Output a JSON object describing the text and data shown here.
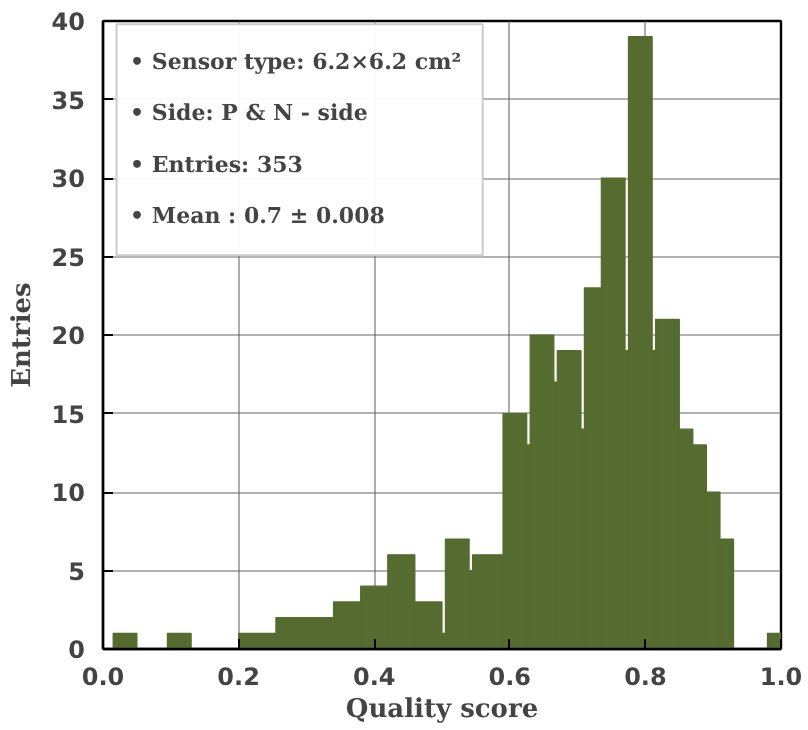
{
  "chart_data": {
    "type": "histogram",
    "xlabel": "Quality score",
    "ylabel": "Entries",
    "bins": [
      0.015,
      0.05,
      0.095,
      0.13,
      0.2,
      0.255,
      0.34,
      0.38,
      0.42,
      0.46,
      0.5,
      0.505,
      0.54,
      0.545,
      0.59,
      0.625,
      0.63,
      0.665,
      0.67,
      0.705,
      0.71,
      0.735,
      0.77,
      0.775,
      0.81,
      0.815,
      0.85,
      0.87,
      0.89,
      0.91,
      0.93,
      0.98,
      1.0
    ],
    "values": [
      1,
      0,
      1,
      0,
      1,
      2,
      3,
      4,
      6,
      3,
      1,
      7,
      5,
      6,
      15,
      13,
      20,
      17,
      19,
      14,
      23,
      30,
      19,
      39,
      19,
      21,
      14,
      13,
      10,
      7,
      0,
      1
    ],
    "color": "#556b2f",
    "xlim": [
      0,
      1
    ],
    "xticks": [
      {
        "value": 0,
        "label": "0.0"
      },
      {
        "value": 0.2,
        "label": "0.2"
      },
      {
        "value": 0.4,
        "label": "0.4"
      },
      {
        "value": 0.6,
        "label": "0.6"
      },
      {
        "value": 0.8,
        "label": "0.8"
      },
      {
        "value": 1,
        "label": "1.0"
      }
    ],
    "ylim": [
      0,
      40
    ],
    "yticks": [
      0,
      5,
      10,
      15,
      20,
      25,
      30,
      35,
      40
    ],
    "grid": true,
    "annotations": [
      "• Sensor type: 6.2×6.2 cm²",
      "• Side: P & N - side",
      "• Entries: 353",
      "• Mean : 0.7 ± 0.008"
    ]
  }
}
